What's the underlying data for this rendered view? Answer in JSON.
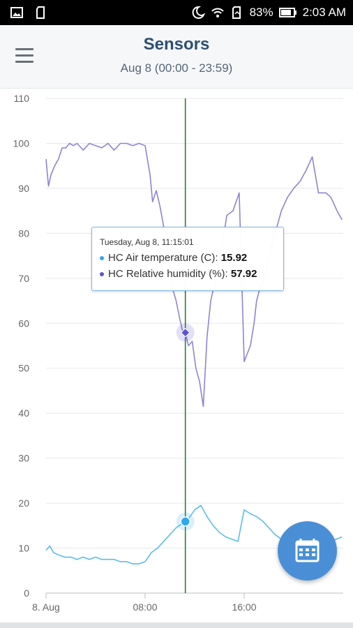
{
  "status_bar": {
    "battery": "83%",
    "time": "2:03 AM",
    "icons": [
      "gallery-icon",
      "sd-card-icon",
      "do-not-disturb-icon",
      "wifi-icon",
      "battery-saver-icon",
      "battery-icon"
    ]
  },
  "header": {
    "title": "Sensors",
    "subtitle": "Aug 8 (00:00 - 23:59)",
    "menu_icon": "hamburger-menu-icon"
  },
  "tooltip": {
    "date": "Tuesday, Aug 8, 11:15:01",
    "rows": [
      {
        "label": "HC Air temperature (C): ",
        "value": "15.92",
        "color": "#2fa8f0"
      },
      {
        "label": "HC Relative humidity (%): ",
        "value": "57.92",
        "color": "#5b55c9"
      }
    ]
  },
  "fab": {
    "icon": "calendar-icon",
    "color": "#4a8fd6"
  },
  "chart_data": {
    "type": "line",
    "x_unit": "hours since 00:00 Aug 8",
    "x_ticks": [
      {
        "value": 0,
        "label": "8. Aug"
      },
      {
        "value": 8,
        "label": "08:00"
      },
      {
        "value": 16,
        "label": "16:00"
      }
    ],
    "xlim": [
      0,
      24
    ],
    "ylim": [
      0,
      110
    ],
    "y_ticks": [
      0,
      10,
      20,
      30,
      40,
      50,
      60,
      70,
      80,
      90,
      100,
      110
    ],
    "grid": true,
    "crosshair_x": 11.25,
    "crosshair_color": "#2a7d2a",
    "series": [
      {
        "name": "HC Relative humidity (%)",
        "color": "#8c84d6",
        "marker_color": "#5b55c9",
        "marker_value": 57.92,
        "x": [
          0,
          0.2,
          0.4,
          0.7,
          1.0,
          1.3,
          1.6,
          1.9,
          2.2,
          2.5,
          3.0,
          3.5,
          4.0,
          4.5,
          5.0,
          5.5,
          6.0,
          6.5,
          7.0,
          7.5,
          8.0,
          8.4,
          8.6,
          8.9,
          9.2,
          9.6,
          9.9,
          10.2,
          10.5,
          10.8,
          11.0,
          11.25,
          11.5,
          11.8,
          12.1,
          12.4,
          12.7,
          13.0,
          13.3,
          13.7,
          14.1,
          14.6,
          15.1,
          15.6,
          16.0,
          16.5,
          16.8,
          17.0,
          17.3,
          17.7,
          18.1,
          18.5,
          19.0,
          19.5,
          20.0,
          20.5,
          21.0,
          21.5,
          22.0,
          22.3,
          22.6,
          23.0,
          23.5,
          23.9
        ],
        "y": [
          96.5,
          90.5,
          93,
          95,
          96.5,
          99,
          99,
          100,
          99.5,
          100,
          98.5,
          100,
          99.5,
          99,
          100,
          98.5,
          100,
          100,
          99.5,
          100,
          99.5,
          93,
          87,
          89.5,
          86,
          80,
          75,
          68,
          65,
          61,
          58.5,
          57.92,
          55,
          56,
          50,
          47,
          41.5,
          57,
          65,
          70,
          75,
          84,
          85,
          89,
          51.5,
          55,
          60,
          65,
          68,
          70,
          76,
          80,
          85,
          88,
          90,
          91.5,
          94,
          97,
          89,
          89,
          89,
          88,
          85,
          83
        ]
      },
      {
        "name": "HC Air temperature (C)",
        "color": "#5bbde8",
        "marker_color": "#2fa8f0",
        "marker_value": 15.92,
        "x": [
          0,
          0.3,
          0.6,
          1.0,
          1.5,
          2.0,
          2.5,
          3.0,
          3.5,
          4.0,
          4.5,
          5.0,
          5.5,
          6.0,
          6.5,
          7.0,
          7.5,
          8.0,
          8.5,
          9.0,
          9.5,
          10.0,
          10.5,
          11.0,
          11.25,
          11.5,
          12.0,
          12.5,
          13.0,
          13.5,
          14.0,
          14.5,
          15.0,
          15.5,
          16.0,
          16.3,
          16.6,
          17.0,
          17.5,
          18.0,
          18.5,
          19.0,
          19.5,
          20.0,
          20.5,
          21.0,
          22.0,
          23.0,
          23.9
        ],
        "y": [
          9.5,
          10.5,
          9,
          8.5,
          8,
          8,
          7.5,
          8,
          7.5,
          8,
          7.5,
          7.5,
          7.5,
          7,
          7,
          6.5,
          6.5,
          7,
          9,
          10,
          11.5,
          13,
          14.5,
          15.5,
          15.92,
          16.5,
          18.5,
          19.5,
          17,
          15,
          13.5,
          12.5,
          12,
          11.5,
          18.5,
          18,
          17.5,
          17,
          16,
          14.5,
          13,
          12,
          11.5,
          11,
          10.5,
          10,
          10.5,
          11.5,
          12.5
        ]
      }
    ]
  }
}
